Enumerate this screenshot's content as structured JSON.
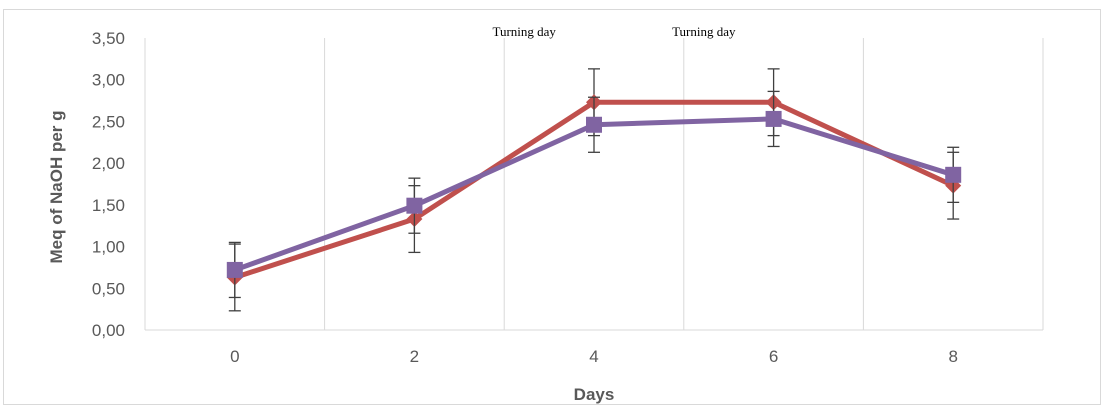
{
  "chart_data": {
    "type": "line",
    "title": "",
    "xlabel": "Days",
    "ylabel": "Meq of NaOH per g",
    "categories": [
      "0",
      "2",
      "4",
      "6",
      "8"
    ],
    "y_ticks": [
      "0,00",
      "0,50",
      "1,00",
      "1,50",
      "2,00",
      "2,50",
      "3,00",
      "3,50"
    ],
    "ylim": [
      0,
      3.5
    ],
    "grid": "vertical",
    "legend": "none",
    "series": [
      {
        "color": "#c0504d",
        "marker": "diamond",
        "values": [
          0.63,
          1.33,
          2.73,
          2.73,
          1.73
        ],
        "error": [
          0.4,
          0.4,
          0.4,
          0.4,
          0.4
        ]
      },
      {
        "color": "#8064a2",
        "marker": "square",
        "values": [
          0.72,
          1.49,
          2.46,
          2.53,
          1.86
        ],
        "error": [
          0.33,
          0.33,
          0.33,
          0.33,
          0.33
        ]
      }
    ],
    "annotations": [
      {
        "text": "Turning day",
        "x_after": "2"
      },
      {
        "text": "Turning day",
        "x_after": "4"
      }
    ]
  }
}
